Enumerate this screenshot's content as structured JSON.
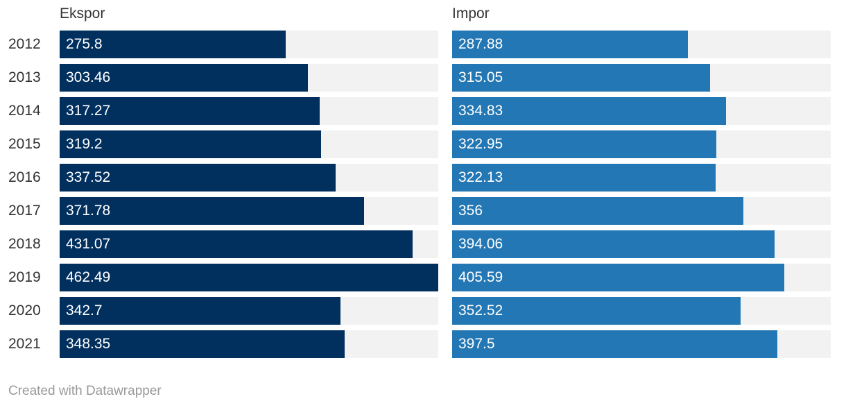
{
  "chart_data": {
    "type": "bar",
    "categories": [
      "2012",
      "2013",
      "2014",
      "2015",
      "2016",
      "2017",
      "2018",
      "2019",
      "2020",
      "2021"
    ],
    "series": [
      {
        "name": "Ekspor",
        "color": "#01305f",
        "values": [
          275.8,
          303.46,
          317.27,
          319.2,
          337.52,
          371.78,
          431.07,
          462.49,
          342.7,
          348.35
        ],
        "labels": [
          "275.8",
          "303.46",
          "317.27",
          "319.2",
          "337.52",
          "371.78",
          "431.07",
          "462.49",
          "342.7",
          "348.35"
        ]
      },
      {
        "name": "Impor",
        "color": "#2277b4",
        "values": [
          287.88,
          315.05,
          334.83,
          322.95,
          322.13,
          356,
          394.06,
          405.59,
          352.52,
          397.5
        ],
        "labels": [
          "287.88",
          "315.05",
          "334.83",
          "322.95",
          "322.13",
          "356",
          "394.06",
          "405.59",
          "352.52",
          "397.5"
        ]
      }
    ],
    "xlim": [
      0,
      462.49
    ],
    "grid": false,
    "legend": "none"
  },
  "footer": {
    "credit": "Created with Datawrapper"
  }
}
